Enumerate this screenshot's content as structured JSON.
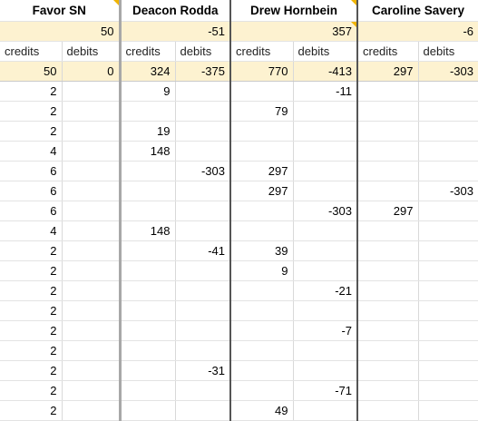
{
  "people": [
    {
      "name": "Favor SN",
      "total": "50",
      "credits_label": "credits",
      "debits_label": "debits",
      "credits_sum": "50",
      "debits_sum": "0"
    },
    {
      "name": "Deacon Rodda",
      "total": "-51",
      "credits_label": "credits",
      "debits_label": "debits",
      "credits_sum": "324",
      "debits_sum": "-375"
    },
    {
      "name": "Drew Hornbein",
      "total": "357",
      "credits_label": "credits",
      "debits_label": "debits",
      "credits_sum": "770",
      "debits_sum": "-413"
    },
    {
      "name": "Caroline Savery",
      "total": "-6",
      "credits_label": "credits",
      "debits_label": "debits",
      "credits_sum": "297",
      "debits_sum": "-303"
    }
  ],
  "rows": [
    [
      "2",
      "",
      "9",
      "",
      "",
      "-11",
      "",
      ""
    ],
    [
      "2",
      "",
      "",
      "",
      "79",
      "",
      "",
      ""
    ],
    [
      "2",
      "",
      "19",
      "",
      "",
      "",
      "",
      ""
    ],
    [
      "4",
      "",
      "148",
      "",
      "",
      "",
      "",
      ""
    ],
    [
      "6",
      "",
      "",
      "-303",
      "297",
      "",
      "",
      ""
    ],
    [
      "6",
      "",
      "",
      "",
      "297",
      "",
      "",
      "-303"
    ],
    [
      "6",
      "",
      "",
      "",
      "",
      "-303",
      "297",
      ""
    ],
    [
      "4",
      "",
      "148",
      "",
      "",
      "",
      "",
      ""
    ],
    [
      "2",
      "",
      "",
      "-41",
      "39",
      "",
      "",
      ""
    ],
    [
      "2",
      "",
      "",
      "",
      "9",
      "",
      "",
      ""
    ],
    [
      "2",
      "",
      "",
      "",
      "",
      "-21",
      "",
      ""
    ],
    [
      "2",
      "",
      "",
      "",
      "",
      "",
      "",
      ""
    ],
    [
      "2",
      "",
      "",
      "",
      "",
      "-7",
      "",
      ""
    ],
    [
      "2",
      "",
      "",
      "",
      "",
      "",
      "",
      ""
    ],
    [
      "2",
      "",
      "",
      "-31",
      "",
      "",
      "",
      ""
    ],
    [
      "2",
      "",
      "",
      "",
      "",
      "-71",
      "",
      ""
    ],
    [
      "2",
      "",
      "",
      "",
      "49",
      "",
      "",
      ""
    ]
  ]
}
